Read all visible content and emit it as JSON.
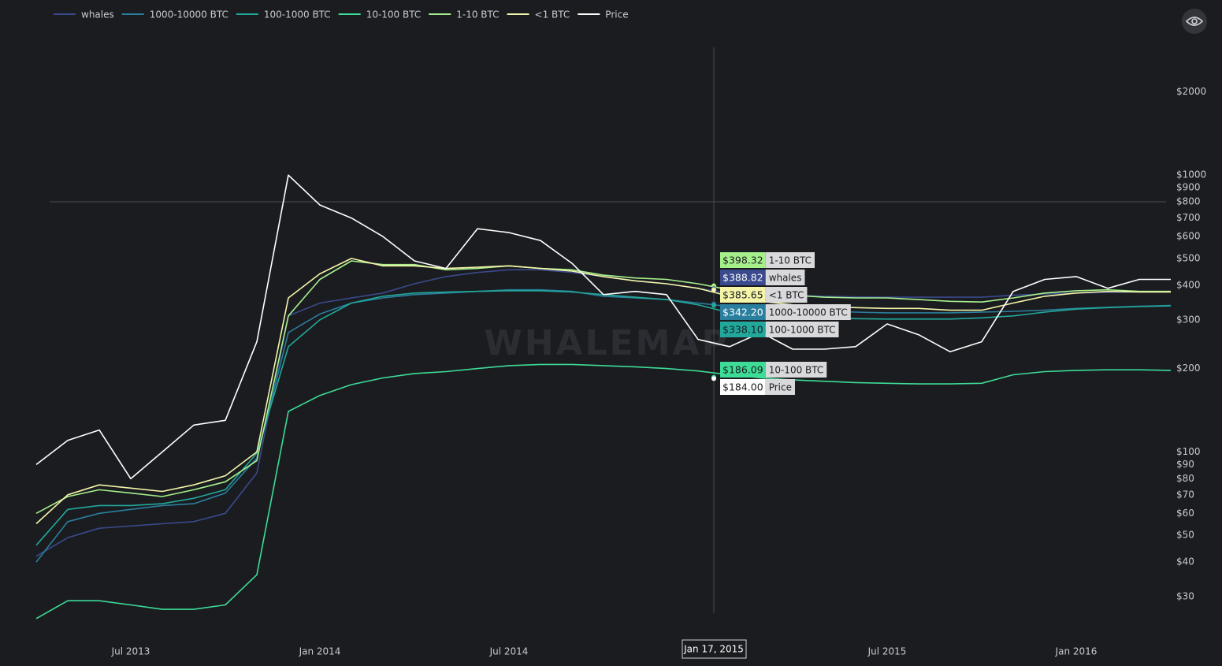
{
  "chart_data": {
    "type": "line",
    "watermark": "WHALEMAP",
    "log_y": true,
    "x": [
      "2013-04",
      "2013-05",
      "2013-06",
      "2013-07",
      "2013-08",
      "2013-09",
      "2013-10",
      "2013-11",
      "2013-12",
      "2014-01",
      "2014-02",
      "2014-03",
      "2014-04",
      "2014-05",
      "2014-06",
      "2014-07",
      "2014-08",
      "2014-09",
      "2014-10",
      "2014-11",
      "2014-12",
      "2015-01",
      "2015-02",
      "2015-03",
      "2015-04",
      "2015-05",
      "2015-06",
      "2015-07",
      "2015-08",
      "2015-09",
      "2015-10",
      "2015-11",
      "2015-12",
      "2016-01",
      "2016-02",
      "2016-03",
      "2016-04"
    ],
    "xlim": [
      "2013-04",
      "2016-04"
    ],
    "xticks": [
      {
        "value": "2013-07",
        "label": "Jul 2013"
      },
      {
        "value": "2014-01",
        "label": "Jan 2014"
      },
      {
        "value": "2014-07",
        "label": "Jul 2014"
      },
      {
        "value": "2015-07",
        "label": "Jul 2015"
      },
      {
        "value": "2016-01",
        "label": "Jan 2016"
      }
    ],
    "ylim": [
      22,
      3000
    ],
    "yticks": [
      {
        "value": 2000,
        "label": "$2000"
      },
      {
        "value": 1000,
        "label": "$1000"
      },
      {
        "value": 900,
        "label": "$900"
      },
      {
        "value": 800,
        "label": "$800"
      },
      {
        "value": 700,
        "label": "$700"
      },
      {
        "value": 600,
        "label": "$600"
      },
      {
        "value": 500,
        "label": "$500"
      },
      {
        "value": 400,
        "label": "$400"
      },
      {
        "value": 300,
        "label": "$300"
      },
      {
        "value": 200,
        "label": "$200"
      },
      {
        "value": 100,
        "label": "$100"
      },
      {
        "value": 90,
        "label": "$90"
      },
      {
        "value": 80,
        "label": "$80"
      },
      {
        "value": 70,
        "label": "$70"
      },
      {
        "value": 60,
        "label": "$60"
      },
      {
        "value": 50,
        "label": "$50"
      },
      {
        "value": 40,
        "label": "$40"
      },
      {
        "value": 30,
        "label": "$30"
      }
    ],
    "series": [
      {
        "name": "whales",
        "color": "#3a4a8c",
        "values": [
          42,
          49,
          53,
          54,
          55,
          56,
          60,
          84,
          310,
          345,
          360,
          375,
          405,
          430,
          445,
          455,
          455,
          445,
          430,
          415,
          405,
          390,
          375,
          370,
          368,
          365,
          363,
          362,
          362,
          362,
          362,
          368,
          372,
          375,
          377,
          378,
          378
        ]
      },
      {
        "name": "1000-10000 BTC",
        "color": "#2a7f9e",
        "values": [
          40,
          56,
          60,
          62,
          64,
          65,
          71,
          95,
          270,
          315,
          345,
          360,
          370,
          375,
          380,
          385,
          385,
          380,
          365,
          360,
          355,
          345,
          335,
          330,
          325,
          322,
          320,
          318,
          318,
          318,
          320,
          322,
          325,
          330,
          333,
          336,
          338
        ]
      },
      {
        "name": "100-1000 BTC",
        "color": "#22a89a",
        "values": [
          46,
          62,
          64,
          64,
          65,
          68,
          73,
          99,
          240,
          300,
          345,
          365,
          375,
          378,
          380,
          382,
          382,
          378,
          370,
          362,
          355,
          340,
          318,
          310,
          308,
          305,
          303,
          302,
          302,
          302,
          305,
          310,
          320,
          328,
          332,
          335,
          337
        ]
      },
      {
        "name": "10-100 BTC",
        "color": "#3ddc97",
        "values": [
          25,
          29,
          29,
          28,
          27,
          27,
          28,
          36,
          140,
          160,
          175,
          185,
          192,
          195,
          200,
          205,
          207,
          207,
          205,
          203,
          200,
          196,
          190,
          185,
          182,
          180,
          178,
          177,
          176,
          176,
          177,
          190,
          195,
          197,
          198,
          198,
          197
        ]
      },
      {
        "name": "1-10 BTC",
        "color": "#a6f08c",
        "values": [
          60,
          69,
          73,
          71,
          69,
          73,
          78,
          93,
          310,
          420,
          490,
          475,
          475,
          455,
          460,
          470,
          460,
          455,
          435,
          425,
          420,
          405,
          385,
          375,
          368,
          362,
          360,
          360,
          355,
          350,
          348,
          360,
          375,
          382,
          385,
          380,
          380
        ]
      },
      {
        "name": "<1 BTC",
        "color": "#f4f5a8",
        "values": [
          55,
          70,
          76,
          74,
          72,
          76,
          82,
          100,
          360,
          440,
          500,
          470,
          470,
          460,
          465,
          470,
          460,
          450,
          430,
          415,
          405,
          390,
          365,
          350,
          340,
          335,
          332,
          330,
          330,
          325,
          325,
          345,
          365,
          375,
          380,
          378,
          378
        ]
      },
      {
        "name": "Price",
        "color": "#ffffff",
        "values": [
          90,
          110,
          120,
          80,
          100,
          125,
          130,
          250,
          1000,
          780,
          700,
          600,
          490,
          460,
          640,
          620,
          580,
          480,
          370,
          380,
          370,
          255,
          240,
          270,
          235,
          235,
          240,
          290,
          265,
          230,
          250,
          380,
          420,
          430,
          390,
          420,
          420
        ]
      }
    ],
    "crosshair": {
      "label": "Jan 17, 2015",
      "entries": [
        {
          "value": 398.32,
          "value_label": "$398.32",
          "name": "1-10 BTC"
        },
        {
          "value": 388.82,
          "value_label": "$388.82",
          "name": "whales"
        },
        {
          "value": 385.65,
          "value_label": "$385.65",
          "name": "<1 BTC"
        },
        {
          "value": 342.2,
          "value_label": "$342.20",
          "name": "1000-10000 BTC"
        },
        {
          "value": 338.1,
          "value_label": "$338.10",
          "name": "100-1000 BTC"
        },
        {
          "value": 186.09,
          "value_label": "$186.09",
          "name": "10-100 BTC"
        },
        {
          "value": 184.0,
          "value_label": "$184.00",
          "name": "Price"
        }
      ]
    }
  }
}
